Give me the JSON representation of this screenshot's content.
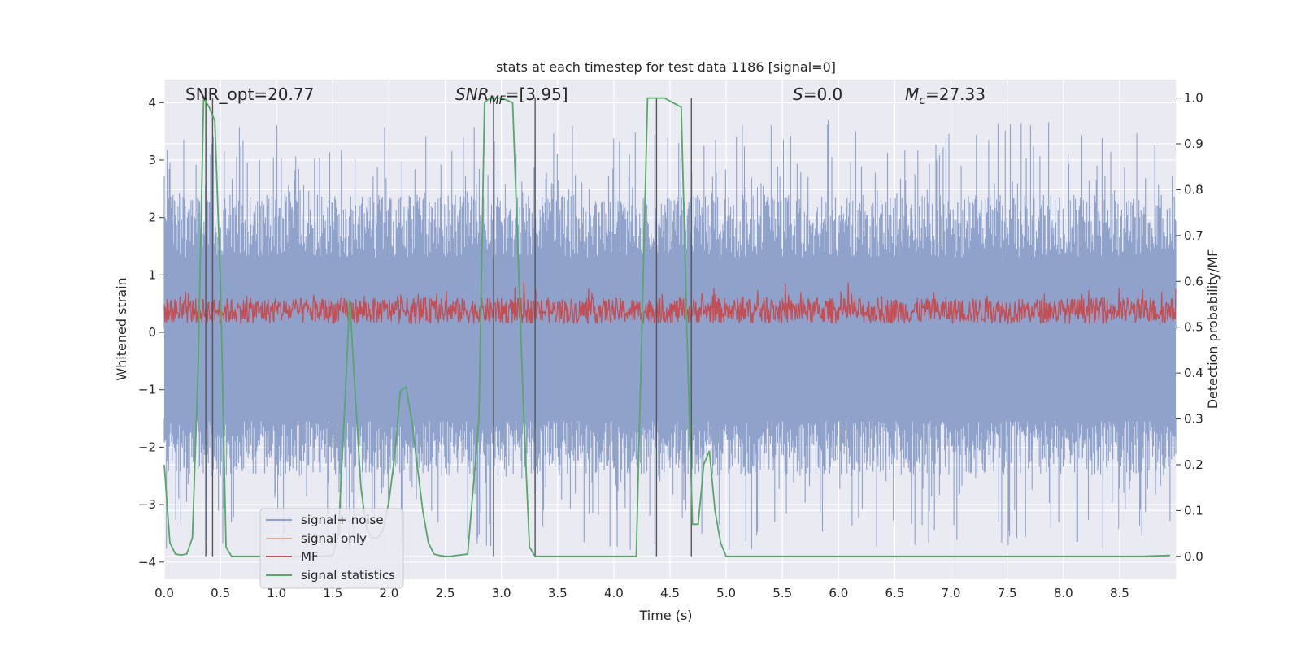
{
  "chart_data": {
    "type": "line",
    "title": "stats at each timestep for test data 1186 [signal=0]",
    "xlabel": "Time (s)",
    "ylabel_left": "Whitened strain",
    "ylabel_right": "Detection probability/MF",
    "xlim": [
      0.0,
      9.0
    ],
    "ylim_left": [
      -4.3,
      4.4
    ],
    "ylim_right": [
      -0.05,
      1.04
    ],
    "x_ticks": [
      "0.0",
      "0.5",
      "1.0",
      "1.5",
      "2.0",
      "2.5",
      "3.0",
      "3.5",
      "4.0",
      "4.5",
      "5.0",
      "5.5",
      "6.0",
      "6.5",
      "7.0",
      "7.5",
      "8.0",
      "8.5"
    ],
    "y_ticks_left": [
      "4",
      "3",
      "2",
      "1",
      "0",
      "−1",
      "−2",
      "−3",
      "−4"
    ],
    "y_ticks_right": [
      "1.0",
      "0.9",
      "0.8",
      "0.7",
      "0.6",
      "0.5",
      "0.4",
      "0.3",
      "0.2",
      "0.1",
      "0.0"
    ],
    "annotations": {
      "snr_opt": "SNR_opt=20.77",
      "snr_mf": {
        "base": "SNR",
        "sub": "MF",
        "value": "=[3.95]"
      },
      "s": {
        "sym": "S",
        "value": "=0.0"
      },
      "mc": {
        "sym": "M",
        "sub": "c",
        "value": "=27.33"
      }
    },
    "series": [
      {
        "name": "signal+ noise",
        "color": "#8ea2cc",
        "description": "noise band",
        "envelope": {
          "upper": [
            1.5,
            2.5,
            3.3
          ],
          "lower": [
            -1.5,
            -2.5,
            -3.9
          ]
        }
      },
      {
        "name": "signal only",
        "color": "#f0a585",
        "values": []
      },
      {
        "name": "MF",
        "color": "#c44e52",
        "description": "band",
        "range": [
          0.1,
          0.9
        ]
      },
      {
        "name": "signal statistics",
        "color": "#55a868",
        "x": [
          0.0,
          0.05,
          0.1,
          0.15,
          0.2,
          0.25,
          0.3,
          0.35,
          0.4,
          0.45,
          0.5,
          0.55,
          0.6,
          0.65,
          0.7,
          0.75,
          0.8,
          0.85,
          0.9,
          0.95,
          1.0,
          1.1,
          1.2,
          1.3,
          1.4,
          1.5,
          1.55,
          1.6,
          1.65,
          1.7,
          1.75,
          1.8,
          1.85,
          1.9,
          1.95,
          2.0,
          2.05,
          2.1,
          2.15,
          2.2,
          2.25,
          2.3,
          2.35,
          2.4,
          2.45,
          2.5,
          2.55,
          2.6,
          2.7,
          2.8,
          2.85,
          2.9,
          2.95,
          3.0,
          3.1,
          3.2,
          3.25,
          3.3,
          3.35,
          3.4,
          3.45,
          3.5,
          3.6,
          3.8,
          4.0,
          4.2,
          4.3,
          4.35,
          4.4,
          4.45,
          4.6,
          4.65,
          4.7,
          4.75,
          4.8,
          4.85,
          4.9,
          4.95,
          5.0,
          5.05,
          5.1,
          5.15,
          5.2,
          5.5,
          6.0,
          7.0,
          8.0,
          8.7,
          8.95
        ],
        "y": [
          0.2,
          0.03,
          0.005,
          0.003,
          0.005,
          0.04,
          0.4,
          1.0,
          0.98,
          0.95,
          0.6,
          0.02,
          0.0,
          0.0,
          0.0,
          0.0,
          0.0,
          0.0,
          0.0,
          0.0,
          0.0,
          0.0,
          0.0,
          0.0,
          0.0,
          0.002,
          0.05,
          0.3,
          0.56,
          0.35,
          0.15,
          0.06,
          0.04,
          0.04,
          0.06,
          0.12,
          0.22,
          0.36,
          0.37,
          0.3,
          0.2,
          0.1,
          0.03,
          0.005,
          0.002,
          0.0,
          0.0,
          0.002,
          0.005,
          0.3,
          0.99,
          1.0,
          1.0,
          1.0,
          0.99,
          0.3,
          0.02,
          0.0,
          0.0,
          0.0,
          0.0,
          0.0,
          0.0,
          0.0,
          0.0,
          0.0,
          1.0,
          1.0,
          1.0,
          1.0,
          0.98,
          0.5,
          0.07,
          0.07,
          0.2,
          0.23,
          0.1,
          0.03,
          0.0,
          0.0,
          0.0,
          0.0,
          0.0,
          0.0,
          0.0,
          0.0,
          0.0,
          0.0,
          0.002
        ]
      }
    ],
    "vertical_lines": [
      0.37,
      0.43,
      2.93,
      3.3,
      4.38,
      4.69
    ],
    "legend": {
      "location": "lower-left",
      "entries": [
        "signal+ noise",
        "signal only",
        "MF",
        "signal statistics"
      ]
    }
  }
}
